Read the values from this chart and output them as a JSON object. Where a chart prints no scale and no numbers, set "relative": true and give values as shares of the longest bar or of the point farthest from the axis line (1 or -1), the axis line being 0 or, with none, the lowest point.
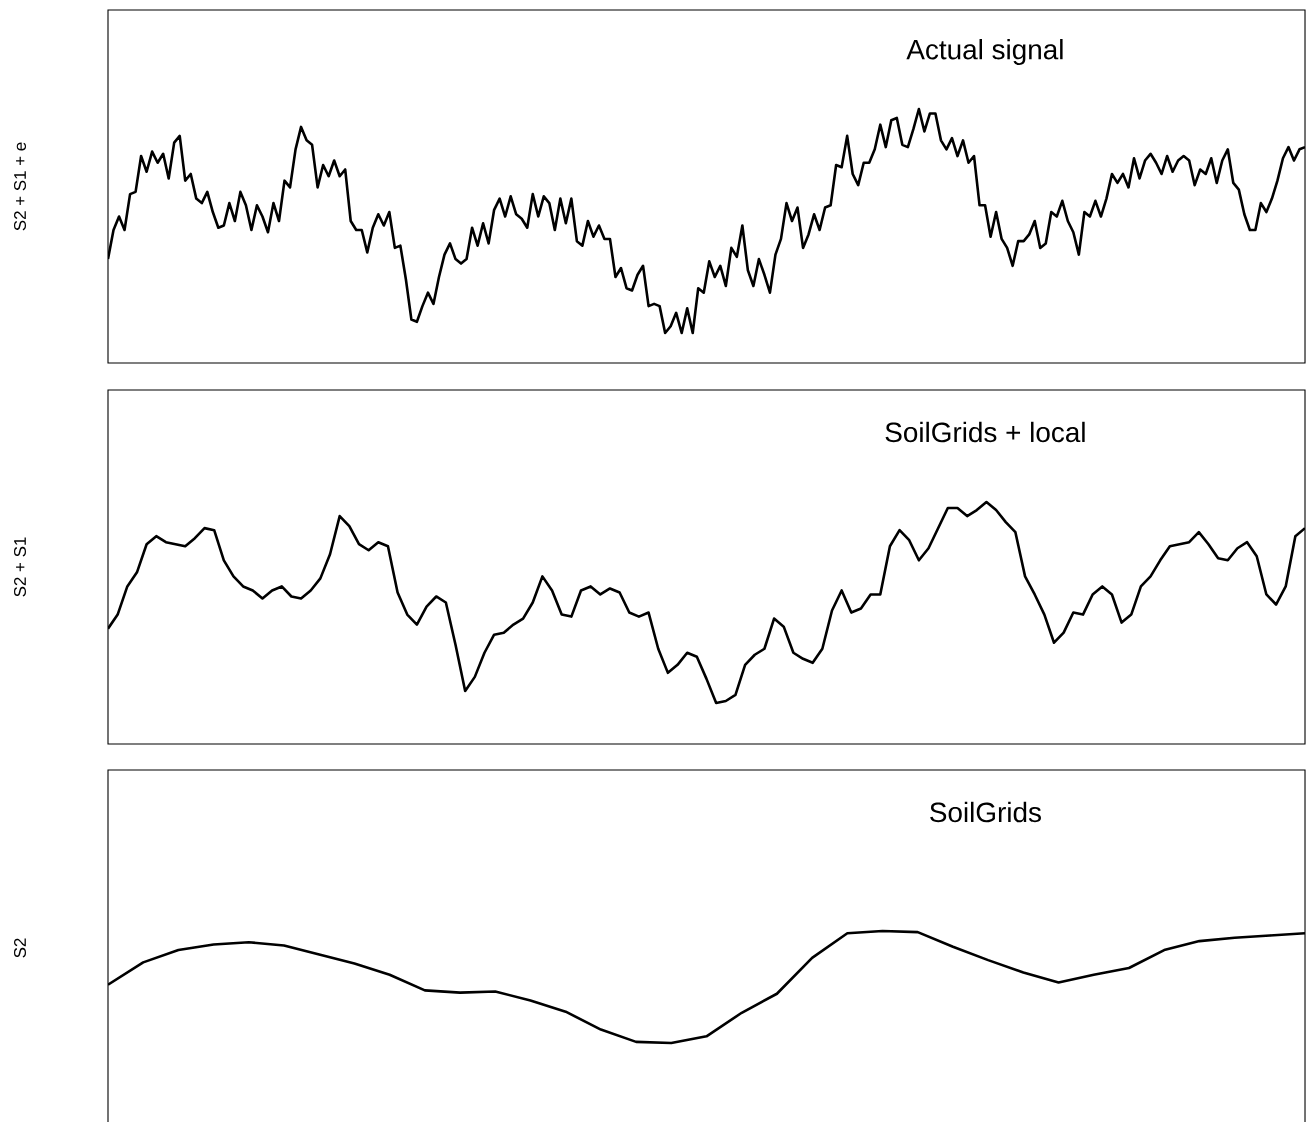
{
  "chart_data": [
    {
      "type": "line",
      "title": "Actual signal",
      "ylabel": "S2 + S1 + e",
      "relative": true,
      "color": "#000000",
      "categories": [
        null,
        null,
        null,
        null,
        null,
        null,
        null,
        null,
        null,
        null,
        null,
        null,
        null,
        null,
        null,
        null,
        null,
        null,
        null,
        null,
        null,
        null,
        null,
        null,
        null,
        null,
        null,
        null,
        null,
        null,
        null,
        null,
        null,
        null,
        null,
        null,
        null,
        null,
        null,
        null,
        null,
        null,
        null,
        null,
        null,
        null,
        null,
        null,
        null,
        null,
        null,
        null,
        null,
        null,
        null,
        null,
        null,
        null,
        null,
        null,
        null,
        null,
        null,
        null,
        null,
        null,
        null,
        null,
        null,
        null,
        null,
        null,
        null,
        null,
        null,
        null,
        null,
        null,
        null,
        null,
        null,
        null,
        null,
        null,
        null,
        null,
        null,
        null,
        null,
        null,
        null,
        null,
        null,
        null,
        null,
        null,
        null,
        null,
        null,
        null,
        null,
        null,
        null,
        null,
        null,
        null,
        null,
        null,
        null,
        null,
        null,
        null,
        null,
        null,
        null,
        null,
        null,
        null,
        null,
        null,
        null,
        null,
        null,
        null,
        null,
        null,
        null,
        null,
        null,
        null,
        null,
        null,
        null,
        null,
        null,
        null,
        null,
        null,
        null,
        null,
        null,
        null,
        null,
        null,
        null,
        null,
        null,
        null,
        null,
        null,
        null,
        null,
        null,
        null,
        null,
        null,
        null,
        null,
        null,
        null,
        null,
        null,
        null,
        null,
        null,
        null,
        null,
        null,
        null,
        null,
        null,
        null,
        null,
        null,
        null,
        null,
        null,
        null,
        null,
        null,
        null,
        null,
        null,
        null,
        null,
        null,
        null,
        null,
        null,
        null,
        null,
        null,
        null,
        null,
        null,
        null,
        null,
        null,
        null,
        null,
        null,
        null,
        null,
        null,
        null,
        null,
        null,
        null,
        null,
        null,
        null,
        null,
        null,
        null,
        null,
        null,
        null,
        null
      ],
      "values": [
        0.33,
        0.46,
        0.52,
        0.46,
        0.62,
        0.63,
        0.79,
        0.72,
        0.81,
        0.76,
        0.8,
        0.69,
        0.85,
        0.88,
        0.68,
        0.71,
        0.6,
        0.58,
        0.63,
        0.54,
        0.47,
        0.48,
        0.58,
        0.5,
        0.63,
        0.57,
        0.46,
        0.57,
        0.52,
        0.45,
        0.58,
        0.5,
        0.68,
        0.65,
        0.82,
        0.92,
        0.86,
        0.84,
        0.65,
        0.75,
        0.7,
        0.77,
        0.7,
        0.73,
        0.5,
        0.46,
        0.46,
        0.36,
        0.47,
        0.53,
        0.48,
        0.54,
        0.38,
        0.39,
        0.24,
        0.06,
        0.05,
        0.12,
        0.18,
        0.13,
        0.25,
        0.35,
        0.4,
        0.33,
        0.31,
        0.33,
        0.47,
        0.39,
        0.49,
        0.4,
        0.55,
        0.6,
        0.52,
        0.61,
        0.53,
        0.51,
        0.47,
        0.62,
        0.52,
        0.61,
        0.58,
        0.46,
        0.6,
        0.49,
        0.6,
        0.41,
        0.39,
        0.5,
        0.43,
        0.48,
        0.42,
        0.42,
        0.25,
        0.29,
        0.2,
        0.19,
        0.26,
        0.3,
        0.12,
        0.13,
        0.12,
        0,
        0.03,
        0.09,
        0,
        0.11,
        0,
        0.2,
        0.18,
        0.32,
        0.25,
        0.3,
        0.21,
        0.38,
        0.34,
        0.48,
        0.28,
        0.21,
        0.33,
        0.26,
        0.18,
        0.35,
        0.42,
        0.58,
        0.5,
        0.56,
        0.38,
        0.44,
        0.53,
        0.46,
        0.56,
        0.57,
        0.75,
        0.74,
        0.88,
        0.71,
        0.66,
        0.76,
        0.76,
        0.82,
        0.93,
        0.83,
        0.95,
        0.96,
        0.84,
        0.83,
        0.91,
        1.0,
        0.9,
        0.98,
        0.98,
        0.86,
        0.82,
        0.87,
        0.79,
        0.86,
        0.76,
        0.79,
        0.57,
        0.57,
        0.43,
        0.54,
        0.42,
        0.38,
        0.3,
        0.41,
        0.41,
        0.44,
        0.5,
        0.38,
        0.4,
        0.54,
        0.52,
        0.59,
        0.5,
        0.45,
        0.35,
        0.54,
        0.52,
        0.59,
        0.52,
        0.6,
        0.71,
        0.67,
        0.71,
        0.65,
        0.78,
        0.69,
        0.77,
        0.8,
        0.76,
        0.71,
        0.79,
        0.72,
        0.77,
        0.79,
        0.77,
        0.66,
        0.73,
        0.71,
        0.78,
        0.67,
        0.77,
        0.82,
        0.67,
        0.64,
        0.53,
        0.46,
        0.46,
        0.58,
        0.54,
        0.6,
        0.68,
        0.78,
        0.83,
        0.77,
        0.82,
        0.83
      ]
    },
    {
      "type": "line",
      "title": "SoilGrids + local",
      "ylabel": "S2 + S1",
      "relative": true,
      "color": "#000000",
      "categories": [
        null,
        null,
        null,
        null,
        null,
        null,
        null,
        null,
        null,
        null,
        null,
        null,
        null,
        null,
        null,
        null,
        null,
        null,
        null,
        null,
        null,
        null,
        null,
        null,
        null,
        null,
        null,
        null,
        null,
        null,
        null,
        null,
        null,
        null,
        null,
        null,
        null,
        null,
        null,
        null,
        null,
        null,
        null,
        null,
        null,
        null,
        null,
        null,
        null,
        null,
        null,
        null,
        null,
        null,
        null,
        null,
        null,
        null,
        null,
        null,
        null,
        null,
        null,
        null,
        null,
        null,
        null,
        null,
        null,
        null,
        null,
        null,
        null,
        null,
        null,
        null,
        null,
        null,
        null,
        null,
        null,
        null,
        null,
        null,
        null,
        null,
        null,
        null,
        null,
        null,
        null,
        null,
        null,
        null,
        null,
        null,
        null,
        null,
        null,
        null,
        null,
        null,
        null,
        null,
        null,
        null,
        null,
        null,
        null,
        null,
        null,
        null,
        null,
        null,
        null,
        null,
        null,
        null,
        null,
        null,
        null,
        null,
        null,
        null,
        null
      ],
      "values": [
        0.37,
        0.44,
        0.58,
        0.65,
        0.79,
        0.83,
        0.8,
        0.79,
        0.78,
        0.82,
        0.87,
        0.86,
        0.71,
        0.63,
        0.58,
        0.56,
        0.52,
        0.56,
        0.58,
        0.53,
        0.52,
        0.56,
        0.62,
        0.74,
        0.93,
        0.88,
        0.79,
        0.76,
        0.8,
        0.78,
        0.55,
        0.44,
        0.39,
        0.48,
        0.53,
        0.5,
        0.29,
        0.06,
        0.13,
        0.25,
        0.34,
        0.35,
        0.39,
        0.42,
        0.5,
        0.63,
        0.56,
        0.44,
        0.43,
        0.56,
        0.58,
        0.54,
        0.57,
        0.55,
        0.45,
        0.43,
        0.45,
        0.27,
        0.15,
        0.19,
        0.25,
        0.23,
        0.12,
        0,
        0.01,
        0.04,
        0.19,
        0.24,
        0.27,
        0.42,
        0.38,
        0.25,
        0.22,
        0.2,
        0.27,
        0.46,
        0.56,
        0.45,
        0.47,
        0.54,
        0.54,
        0.78,
        0.86,
        0.81,
        0.71,
        0.77,
        0.87,
        0.97,
        0.97,
        0.93,
        0.96,
        1.0,
        0.96,
        0.9,
        0.85,
        0.63,
        0.54,
        0.44,
        0.3,
        0.35,
        0.45,
        0.44,
        0.54,
        0.58,
        0.54,
        0.4,
        0.44,
        0.58,
        0.63,
        0.71,
        0.78,
        0.79,
        0.8,
        0.85,
        0.79,
        0.72,
        0.71,
        0.77,
        0.8,
        0.73,
        0.54,
        0.49,
        0.58,
        0.83,
        0.87
      ]
    },
    {
      "type": "line",
      "title": "SoilGrids",
      "ylabel": "S2",
      "relative": true,
      "color": "#000000",
      "categories": [
        null,
        null,
        null,
        null,
        null,
        null,
        null,
        null,
        null,
        null,
        null,
        null,
        null,
        null,
        null,
        null,
        null,
        null,
        null,
        null,
        null,
        null,
        null,
        null,
        null,
        null,
        null,
        null,
        null,
        null,
        null,
        null,
        null,
        null,
        null
      ],
      "values": [
        0.52,
        0.72,
        0.83,
        0.88,
        0.9,
        0.87,
        0.79,
        0.71,
        0.61,
        0.47,
        0.45,
        0.46,
        0.38,
        0.28,
        0.12,
        0.01,
        0,
        0.06,
        0.27,
        0.44,
        0.76,
        0.98,
        1.0,
        0.99,
        0.86,
        0.74,
        0.63,
        0.54,
        0.61,
        0.67,
        0.83,
        0.91,
        0.94,
        0.96,
        0.98
      ]
    }
  ]
}
